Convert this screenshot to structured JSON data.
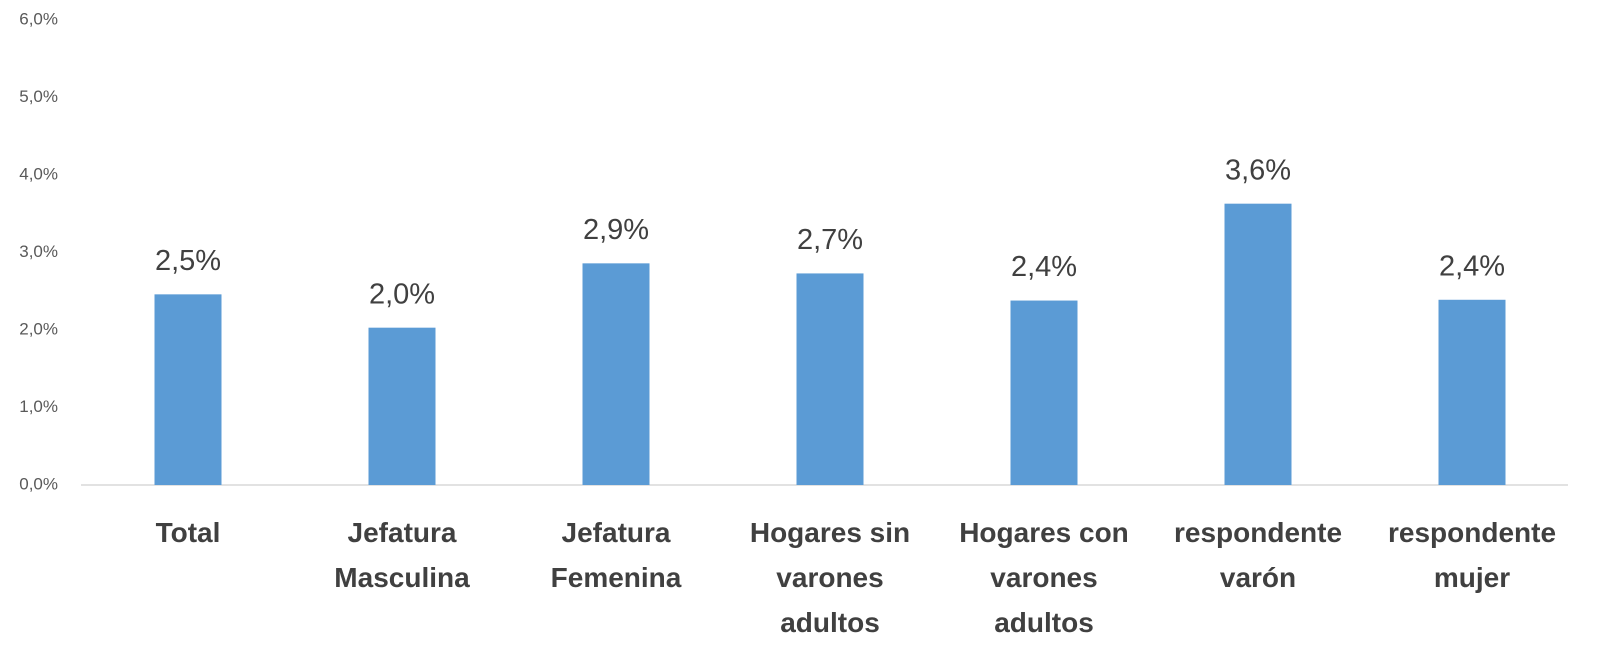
{
  "chart_data": {
    "type": "bar",
    "categories": [
      "Total",
      "Jefatura Masculina",
      "Jefatura Femenina",
      "Hogares sin varones adultos",
      "Hogares con varones adultos",
      "respondente varón",
      "respondente mujer"
    ],
    "values": [
      2.46,
      2.03,
      2.86,
      2.73,
      2.38,
      3.63,
      2.39
    ],
    "value_labels": [
      "2,5%",
      "2,0%",
      "2,9%",
      "2,7%",
      "2,4%",
      "3,6%",
      "2,4%"
    ],
    "color": "#5b9bd5",
    "ylim": [
      0,
      6
    ],
    "yticks": [
      {
        "value": 0,
        "label": "0,0%"
      },
      {
        "value": 1,
        "label": "1,0%"
      },
      {
        "value": 2,
        "label": "2,0%"
      },
      {
        "value": 3,
        "label": "3,0%"
      },
      {
        "value": 4,
        "label": "4,0%"
      },
      {
        "value": 5,
        "label": "5,0%"
      },
      {
        "value": 6,
        "label": "6,0%"
      }
    ],
    "grid": false
  }
}
